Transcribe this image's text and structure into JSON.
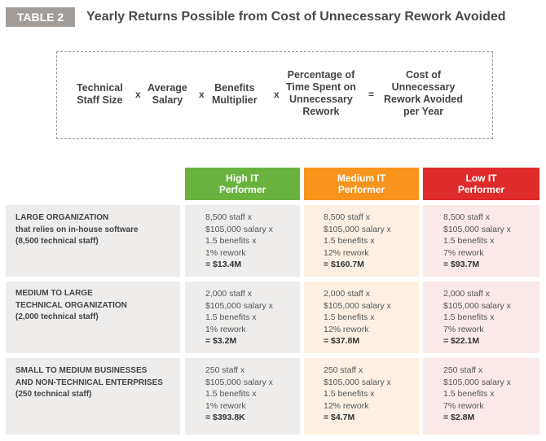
{
  "table_tag": "TABLE 2",
  "title": "Yearly Returns Possible from Cost of Unnecessary Rework Avoided",
  "formula": {
    "terms": [
      [
        "Technical",
        "Staff Size"
      ],
      [
        "Average",
        "Salary"
      ],
      [
        "Benefits",
        "Multiplier"
      ],
      [
        "Percentage of",
        "Time Spent on",
        "Unnecessary",
        "Rework"
      ],
      [
        "Cost of",
        "Unnecessary",
        "Rework Avoided",
        "per Year"
      ]
    ],
    "times": "x",
    "equals": "="
  },
  "columns": {
    "high": [
      "High IT",
      "Performer"
    ],
    "medium": [
      "Medium IT",
      "Performer"
    ],
    "low": [
      "Low IT",
      "Performer"
    ]
  },
  "colors": {
    "high": "#6ab23e",
    "medium": "#f7941d",
    "low": "#e02b2b",
    "tag": "#a39d99"
  },
  "rows": [
    {
      "label": [
        "LARGE ORGANIZATION",
        "that relies on in-house software",
        "(8,500 technical staff)"
      ],
      "high": [
        "8,500 staff x",
        "$105,000 salary x",
        "1.5 benefits x",
        "1% rework",
        "= $13.4M"
      ],
      "medium": [
        "8,500 staff x",
        "$105,000 salary x",
        "1.5 benefits x",
        "12% rework",
        "= $160.7M"
      ],
      "low": [
        "8,500 staff x",
        "$105,000 salary x",
        "1.5 benefits x",
        "7% rework",
        "= $93.7M"
      ]
    },
    {
      "label": [
        "MEDIUM TO LARGE",
        "TECHNICAL ORGANIZATION",
        "(2,000 technical staff)"
      ],
      "high": [
        "2,000 staff x",
        "$105,000 salary x",
        "1.5 benefits x",
        "1% rework",
        "= $3.2M"
      ],
      "medium": [
        "2,000 staff x",
        "$105,000 salary x",
        "1.5 benefits x",
        "12% rework",
        "= $37.8M"
      ],
      "low": [
        "2,000 staff x",
        "$105,000 salary x",
        "1.5 benefits x",
        "7% rework",
        "= $22.1M"
      ]
    },
    {
      "label": [
        "SMALL TO MEDIUM BUSINESSES",
        "AND NON-TECHNICAL ENTERPRISES",
        "(250 technical staff)"
      ],
      "high": [
        "250 staff x",
        "$105,000 salary x",
        "1.5 benefits x",
        "1% rework",
        "= $393.8K"
      ],
      "medium": [
        "250 staff x",
        "$105,000 salary x",
        "1.5 benefits x",
        "12% rework",
        "= $4.7M"
      ],
      "low": [
        "250 staff x",
        "$105,000 salary x",
        "1.5 benefits x",
        "7% rework",
        "= $2.8M"
      ]
    }
  ]
}
